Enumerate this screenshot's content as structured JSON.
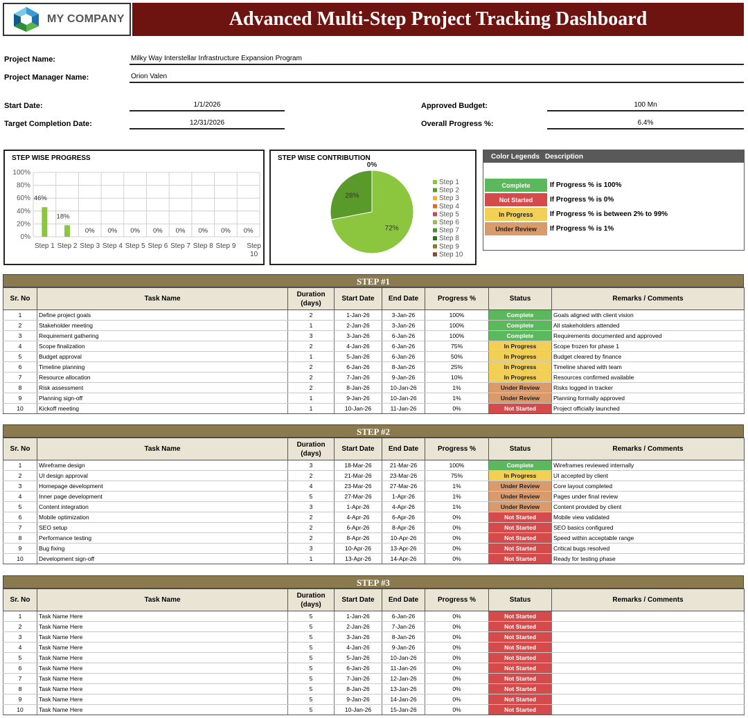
{
  "header": {
    "company": "MY COMPANY",
    "title": "Advanced Multi-Step Project Tracking Dashboard"
  },
  "project": {
    "name_label": "Project Name:",
    "name": "Milky Way Interstellar Infrastructure Expansion Program",
    "manager_label": "Project Manager Name:",
    "manager": "Orion Valen",
    "start_label": "Start Date:",
    "start": "1/1/2026",
    "target_label": "Target Completion Date:",
    "target": "12/31/2026",
    "budget_label": "Approved Budget:",
    "budget": "100 Mn",
    "overall_label": "Overall Progress %:",
    "overall": "6.4%"
  },
  "chart_data": [
    {
      "type": "bar",
      "title": "STEP WISE PROGRESS",
      "categories": [
        "Step 1",
        "Step 2",
        "Step 3",
        "Step 4",
        "Step 5",
        "Step 6",
        "Step 7",
        "Step 8",
        "Step 9",
        "Step 10"
      ],
      "values": [
        46,
        18,
        0,
        0,
        0,
        0,
        0,
        0,
        0,
        0
      ],
      "value_labels": [
        "46%",
        "18%",
        "0%",
        "0%",
        "0%",
        "0%",
        "0%",
        "0%",
        "0%",
        "0%"
      ],
      "y_ticks": [
        "0%",
        "20%",
        "40%",
        "60%",
        "80%",
        "100%"
      ],
      "ylim": [
        0,
        100
      ],
      "grid": true,
      "color": "#8cc63f"
    },
    {
      "type": "pie",
      "title": "STEP WISE CONTRIBUTION",
      "top_label": "0%",
      "slices": [
        {
          "name": "Step 1",
          "value": 72,
          "label": "72%",
          "color": "#8cc63f"
        },
        {
          "name": "Step 2",
          "value": 28,
          "label": "28%",
          "color": "#5a9a2a"
        },
        {
          "name": "Step 3",
          "value": 0,
          "color": "#f0b030"
        },
        {
          "name": "Step 4",
          "value": 0,
          "color": "#e06a28"
        },
        {
          "name": "Step 5",
          "value": 0,
          "color": "#c0504d"
        },
        {
          "name": "Step 6",
          "value": 0,
          "color": "#9bbb59"
        },
        {
          "name": "Step 7",
          "value": 0,
          "color": "#4f8f2f"
        },
        {
          "name": "Step 8",
          "value": 0,
          "color": "#2e6b1f"
        },
        {
          "name": "Step 9",
          "value": 0,
          "color": "#7f7f2f"
        },
        {
          "name": "Step 10",
          "value": 0,
          "color": "#8b4a2a"
        }
      ],
      "legend": "right"
    }
  ],
  "legend": {
    "head_left": "Color Legends",
    "head_right": "Description",
    "items": [
      {
        "label": "Complete",
        "desc": "If Progress % is 100%",
        "color": "#5cb85c"
      },
      {
        "label": "Not Started",
        "desc": "If Progress % is 0%",
        "color": "#d54a4a"
      },
      {
        "label": "In Progress",
        "desc": "If Progress % is between 2% to 99%",
        "color": "#f2cf55"
      },
      {
        "label": "Under Review",
        "desc": "If Progress % is 1%",
        "color": "#d99a6c"
      }
    ]
  },
  "columns": [
    "Sr. No",
    "Task Name",
    "Duration (days)",
    "Start Date",
    "End Date",
    "Progress %",
    "Status",
    "Remarks / Comments"
  ],
  "steps": [
    {
      "title": "STEP #1",
      "rows": [
        [
          "1",
          "Define project goals",
          "2",
          "1-Jan-26",
          "3-Jan-26",
          "100%",
          "Complete",
          "Goals aligned with client vision"
        ],
        [
          "2",
          "Stakeholder meeting",
          "1",
          "2-Jan-26",
          "3-Jan-26",
          "100%",
          "Complete",
          "All stakeholders attended"
        ],
        [
          "3",
          "Requirement gathering",
          "3",
          "3-Jan-26",
          "6-Jan-26",
          "100%",
          "Complete",
          "Requirements documented and approved"
        ],
        [
          "4",
          "Scope finalization",
          "2",
          "4-Jan-26",
          "6-Jan-26",
          "75%",
          "In Progress",
          "Scope frozen for phase 1"
        ],
        [
          "5",
          "Budget approval",
          "1",
          "5-Jan-26",
          "6-Jan-26",
          "50%",
          "In Progress",
          "Budget cleared by finance"
        ],
        [
          "6",
          "Timeline planning",
          "2",
          "6-Jan-26",
          "8-Jan-26",
          "25%",
          "In Progress",
          "Timeline shared with team"
        ],
        [
          "7",
          "Resource allocation",
          "2",
          "7-Jan-26",
          "9-Jan-26",
          "10%",
          "In Progress",
          "Resources confirmed available"
        ],
        [
          "8",
          "Risk assessment",
          "2",
          "8-Jan-26",
          "10-Jan-26",
          "1%",
          "Under Review",
          "Risks logged in tracker"
        ],
        [
          "9",
          "Planning sign-off",
          "1",
          "9-Jan-26",
          "10-Jan-26",
          "1%",
          "Under Review",
          "Planning formally approved"
        ],
        [
          "10",
          "Kickoff meeting",
          "1",
          "10-Jan-26",
          "11-Jan-26",
          "0%",
          "Not Started",
          "Project officially launched"
        ]
      ]
    },
    {
      "title": "STEP #2",
      "rows": [
        [
          "1",
          "Wireframe design",
          "3",
          "18-Mar-26",
          "21-Mar-26",
          "100%",
          "Complete",
          "Wireframes reviewed internally"
        ],
        [
          "2",
          "UI design approval",
          "2",
          "21-Mar-26",
          "23-Mar-26",
          "75%",
          "In Progress",
          "UI accepted by client"
        ],
        [
          "3",
          "Homepage development",
          "4",
          "23-Mar-26",
          "27-Mar-26",
          "1%",
          "Under Review",
          "Core layout completed"
        ],
        [
          "4",
          "Inner page development",
          "5",
          "27-Mar-26",
          "1-Apr-26",
          "1%",
          "Under Review",
          "Pages under final review"
        ],
        [
          "5",
          "Content integration",
          "3",
          "1-Apr-26",
          "4-Apr-26",
          "1%",
          "Under Review",
          "Content provided by client"
        ],
        [
          "6",
          "Mobile optimization",
          "2",
          "4-Apr-26",
          "6-Apr-26",
          "0%",
          "Not Started",
          "Mobile view validated"
        ],
        [
          "7",
          "SEO setup",
          "2",
          "6-Apr-26",
          "8-Apr-26",
          "0%",
          "Not Started",
          "SEO basics configured"
        ],
        [
          "8",
          "Performance testing",
          "2",
          "8-Apr-26",
          "10-Apr-26",
          "0%",
          "Not Started",
          "Speed within acceptable range"
        ],
        [
          "9",
          "Bug fixing",
          "3",
          "10-Apr-26",
          "13-Apr-26",
          "0%",
          "Not Started",
          "Critical bugs resolved"
        ],
        [
          "10",
          "Development sign-off",
          "1",
          "13-Apr-26",
          "14-Apr-26",
          "0%",
          "Not Started",
          "Ready for testing phase"
        ]
      ]
    },
    {
      "title": "STEP #3",
      "rows": [
        [
          "1",
          "Task Name Here",
          "5",
          "1-Jan-26",
          "6-Jan-26",
          "0%",
          "Not Started",
          ""
        ],
        [
          "2",
          "Task Name Here",
          "5",
          "2-Jan-26",
          "7-Jan-26",
          "0%",
          "Not Started",
          ""
        ],
        [
          "3",
          "Task Name Here",
          "5",
          "3-Jan-26",
          "8-Jan-26",
          "0%",
          "Not Started",
          ""
        ],
        [
          "4",
          "Task Name Here",
          "5",
          "4-Jan-26",
          "9-Jan-26",
          "0%",
          "Not Started",
          ""
        ],
        [
          "5",
          "Task Name Here",
          "5",
          "5-Jan-26",
          "10-Jan-26",
          "0%",
          "Not Started",
          ""
        ],
        [
          "6",
          "Task Name Here",
          "5",
          "6-Jan-26",
          "11-Jan-26",
          "0%",
          "Not Started",
          ""
        ],
        [
          "7",
          "Task Name Here",
          "5",
          "7-Jan-26",
          "12-Jan-26",
          "0%",
          "Not Started",
          ""
        ],
        [
          "8",
          "Task Name Here",
          "5",
          "8-Jan-26",
          "13-Jan-26",
          "0%",
          "Not Started",
          ""
        ],
        [
          "9",
          "Task Name Here",
          "5",
          "9-Jan-26",
          "14-Jan-26",
          "0%",
          "Not Started",
          ""
        ],
        [
          "10",
          "Task Name Here",
          "5",
          "10-Jan-26",
          "15-Jan-26",
          "0%",
          "Not Started",
          ""
        ]
      ]
    }
  ]
}
